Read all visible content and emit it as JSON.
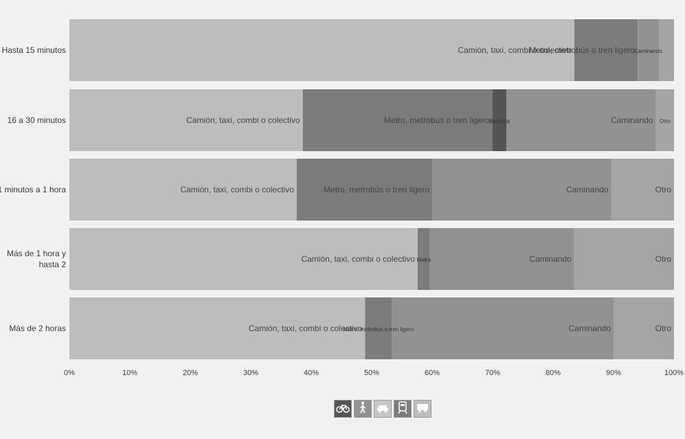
{
  "chart_data": {
    "type": "bar",
    "orientation": "horizontal",
    "stacked": true,
    "normalized": true,
    "categories": [
      "Hasta 15 minutos",
      "16 a 30 minutos",
      "31 minutos a 1 hora",
      "Más de 1 hora y hasta 2",
      "Más de 2 horas"
    ],
    "series": [
      {
        "name": "Camión, taxi, combi o colectivo",
        "color": "#bdbdbd",
        "values": [
          83.5,
          38.6,
          37.6,
          57.6,
          48.9
        ]
      },
      {
        "name": "Metro, metrobús o tren ligero",
        "color": "#7c7c7c",
        "values": [
          10.5,
          31.4,
          22.4,
          2.0,
          4.4
        ]
      },
      {
        "name": "Bici",
        "color": "#555555",
        "values": [
          0,
          2.3,
          0,
          0,
          0
        ]
      },
      {
        "name": "Caminando",
        "color": "#929292",
        "values": [
          3.5,
          24.7,
          29.6,
          23.9,
          36.7
        ]
      },
      {
        "name": "Otro",
        "color": "#a5a5a5",
        "values": [
          2.5,
          3.0,
          10.4,
          16.5,
          10.0
        ]
      }
    ],
    "segment_labels": [
      [
        "Camión, taxi, combi o colectivo",
        "Metro, metrobús o tren ligero",
        "",
        "Caminando",
        ""
      ],
      [
        "Camión, taxi, combi o colectivo",
        "Metro, metrobús o tren ligero",
        "Bicicleta",
        "Caminando",
        "Otro"
      ],
      [
        "Camión, taxi, combi o colectivo",
        "Metro, metrobús o tren ligero",
        "",
        "Caminando",
        "Otro"
      ],
      [
        "Camión, taxi, combi o colectivo",
        "Metro",
        "",
        "Caminando",
        "Otro"
      ],
      [
        "Camión, taxi, combi o colectivo",
        "Metro, metrobús o tren ligero",
        "",
        "Caminando",
        "Otro"
      ]
    ],
    "xlim": [
      0,
      100
    ],
    "xticks": [
      "0%",
      "10%",
      "20%",
      "30%",
      "40%",
      "50%",
      "60%",
      "70%",
      "80%",
      "90%",
      "100%"
    ],
    "title": "",
    "xlabel": "",
    "ylabel": "",
    "grid": false,
    "legend": "bottom-center"
  },
  "legend_icons": [
    {
      "name": "bicycle-icon",
      "color": "#555555"
    },
    {
      "name": "walking-icon",
      "color": "#929292"
    },
    {
      "name": "car-icon",
      "color": "#c8c8c8"
    },
    {
      "name": "train-icon",
      "color": "#7c7c7c"
    },
    {
      "name": "bus-icon",
      "color": "#bdbdbd"
    }
  ]
}
